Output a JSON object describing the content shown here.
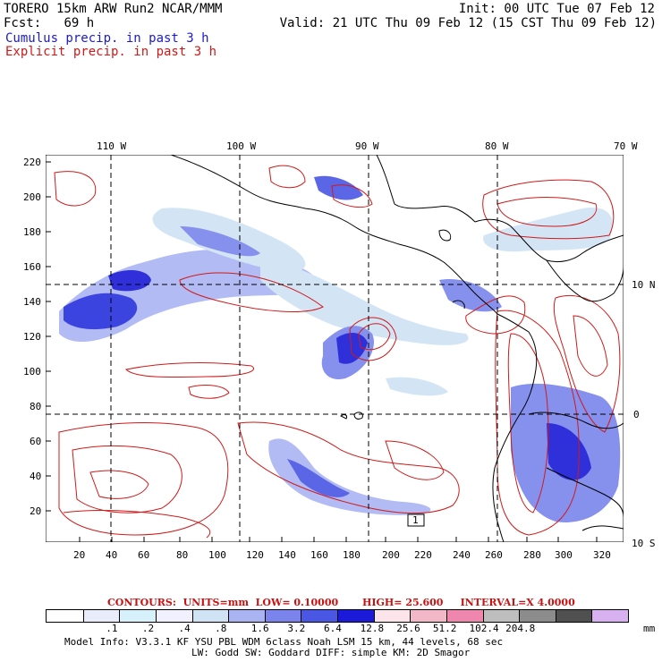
{
  "header": {
    "model_line": "TORERO  15km ARW   Run2    NCAR/MMM",
    "init": "Init: 00 UTC Tue 07 Feb 12",
    "fcst_label": "Fcst:",
    "fcst_value": "69 h",
    "valid": "Valid: 21 UTC Thu 09 Feb 12 (15 CST Thu 09 Feb 12)",
    "legend_cumulus": "Cumulus precip. in past 3 h",
    "legend_explicit": "Explicit precip. in past 3 h",
    "cumulus_color": "#1a1ad0",
    "explicit_color": "#d01a1a"
  },
  "map": {
    "lon_labels": [
      "110 W",
      "100 W",
      "90 W",
      "80 W",
      "70 W"
    ],
    "lat_labels": [
      "10 N",
      "0",
      "10 S"
    ],
    "y_ticks": [
      "220",
      "200",
      "180",
      "160",
      "140",
      "120",
      "100",
      "80",
      "60",
      "40",
      "20"
    ],
    "x_ticks": [
      "20",
      "40",
      "60",
      "80",
      "100",
      "120",
      "140",
      "160",
      "180",
      "200",
      "220",
      "240",
      "260",
      "280",
      "300",
      "320"
    ],
    "box_label": "1"
  },
  "contour_info": {
    "contours": "CONTOURS:",
    "units": "UNITS=mm",
    "low": "LOW= 0.10000",
    "high": "HIGH=  25.600",
    "interval": "INTERVAL=X  4.0000"
  },
  "colorbar": {
    "colors": [
      "#ffffff",
      "#e8ecfb",
      "#d6f1fb",
      "#f0f0ff",
      "#cfe3f5",
      "#aab4f2",
      "#7a84ec",
      "#4a56e4",
      "#1a1ad8",
      "#fbe4ea",
      "#f3b8c8",
      "#ee86ae",
      "#bebebe",
      "#8c8c8c",
      "#505050",
      "#d8b2f0"
    ],
    "labels": [
      ".1",
      ".2",
      ".4",
      ".8",
      "1.6",
      "3.2",
      "6.4",
      "12.8",
      "25.6",
      "51.2",
      "102.4",
      "204.8"
    ],
    "unit": "mm"
  },
  "footer": {
    "line1": "Model Info: V3.3.1   KF    YSU PBL  WDM 6class  Noah LSM  15 km,   44 levels,   68 sec",
    "line2": "LW: Godd SW: Goddard DIFF: simple KM: 2D Smagor"
  }
}
